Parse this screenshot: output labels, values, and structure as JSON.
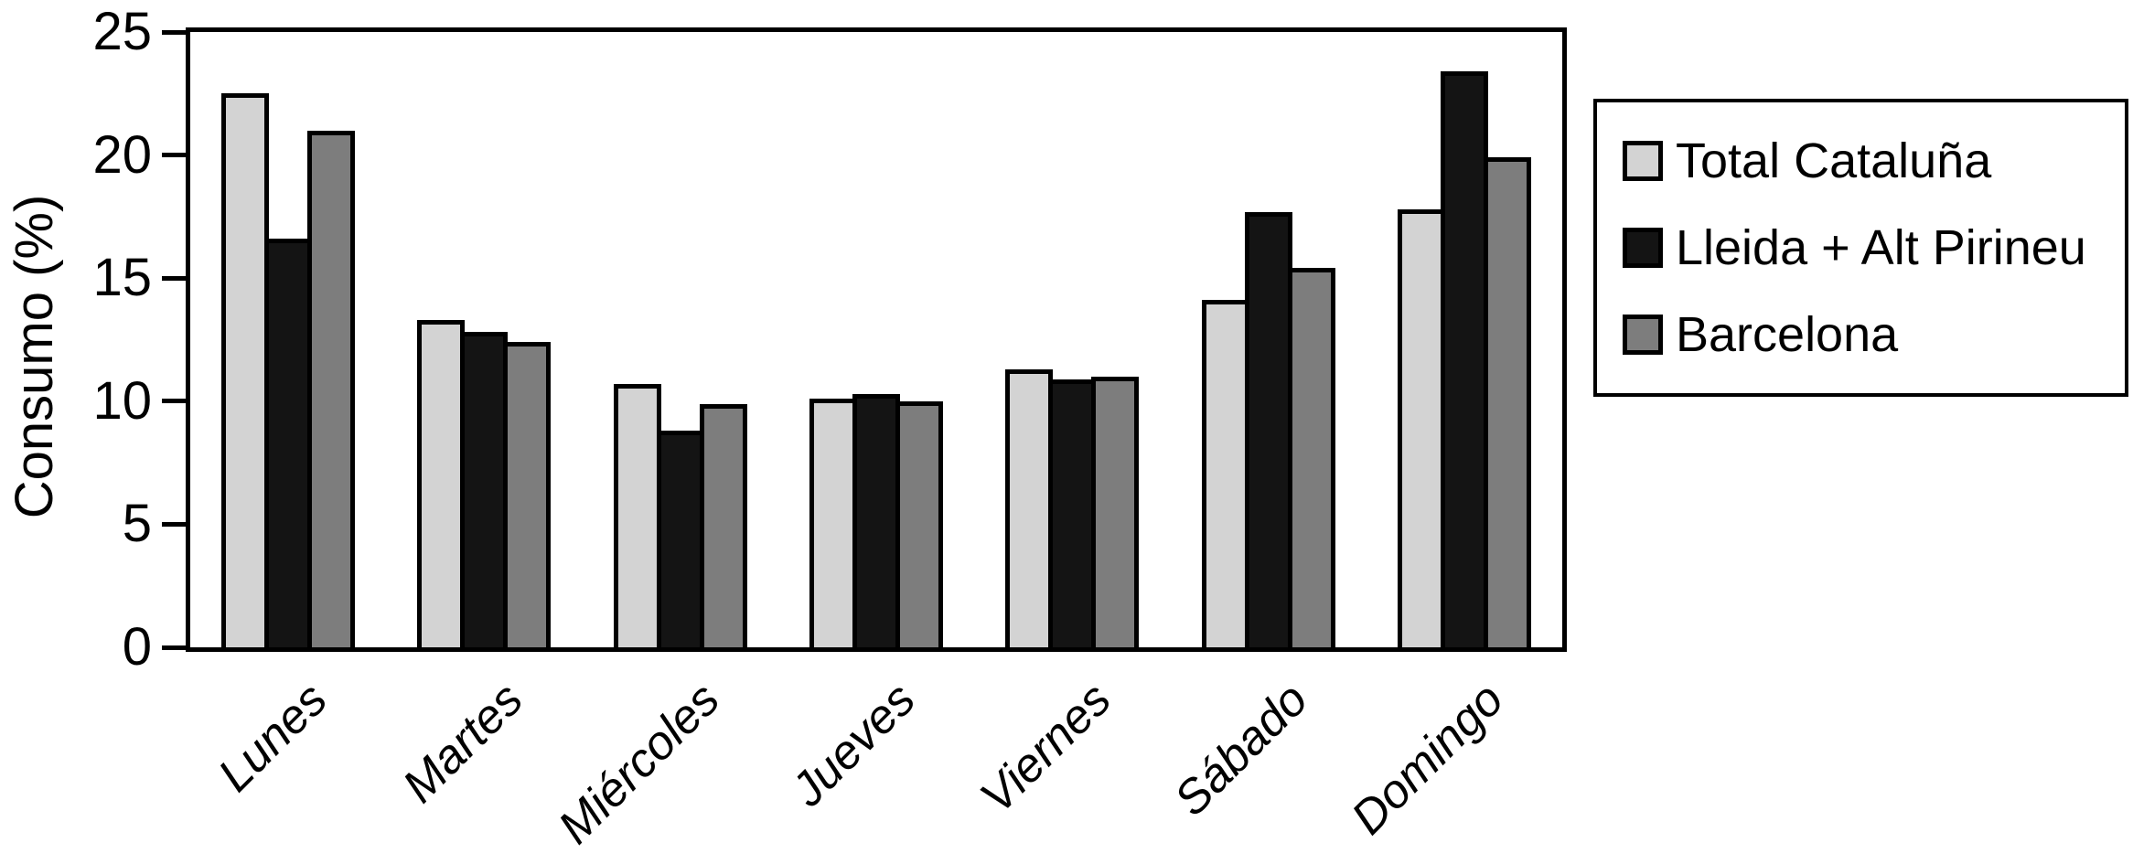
{
  "chart_data": {
    "type": "bar",
    "title": "",
    "xlabel": "",
    "ylabel": "Consumo (%)",
    "ylim": [
      0,
      25
    ],
    "yticks": [
      0,
      5,
      10,
      15,
      20,
      25
    ],
    "grid": false,
    "legend_position": "right",
    "bar_outline_color": "#000000",
    "categories": [
      "Lunes",
      "Martes",
      "Miércoles",
      "Jueves",
      "Viernes",
      "Sábado",
      "Domingo"
    ],
    "series": [
      {
        "name": "Total Cataluña",
        "color": "#d3d3d3",
        "values": [
          22.5,
          13.3,
          10.7,
          10.1,
          11.3,
          14.1,
          17.8
        ]
      },
      {
        "name": "Lleida + Alt Pirineu",
        "color": "#141414",
        "values": [
          16.6,
          12.8,
          8.8,
          10.3,
          10.9,
          17.7,
          23.4
        ]
      },
      {
        "name": "Barcelona",
        "color": "#7d7d7d",
        "values": [
          21.0,
          12.4,
          9.9,
          10.0,
          11.0,
          15.4,
          19.9
        ]
      }
    ]
  }
}
